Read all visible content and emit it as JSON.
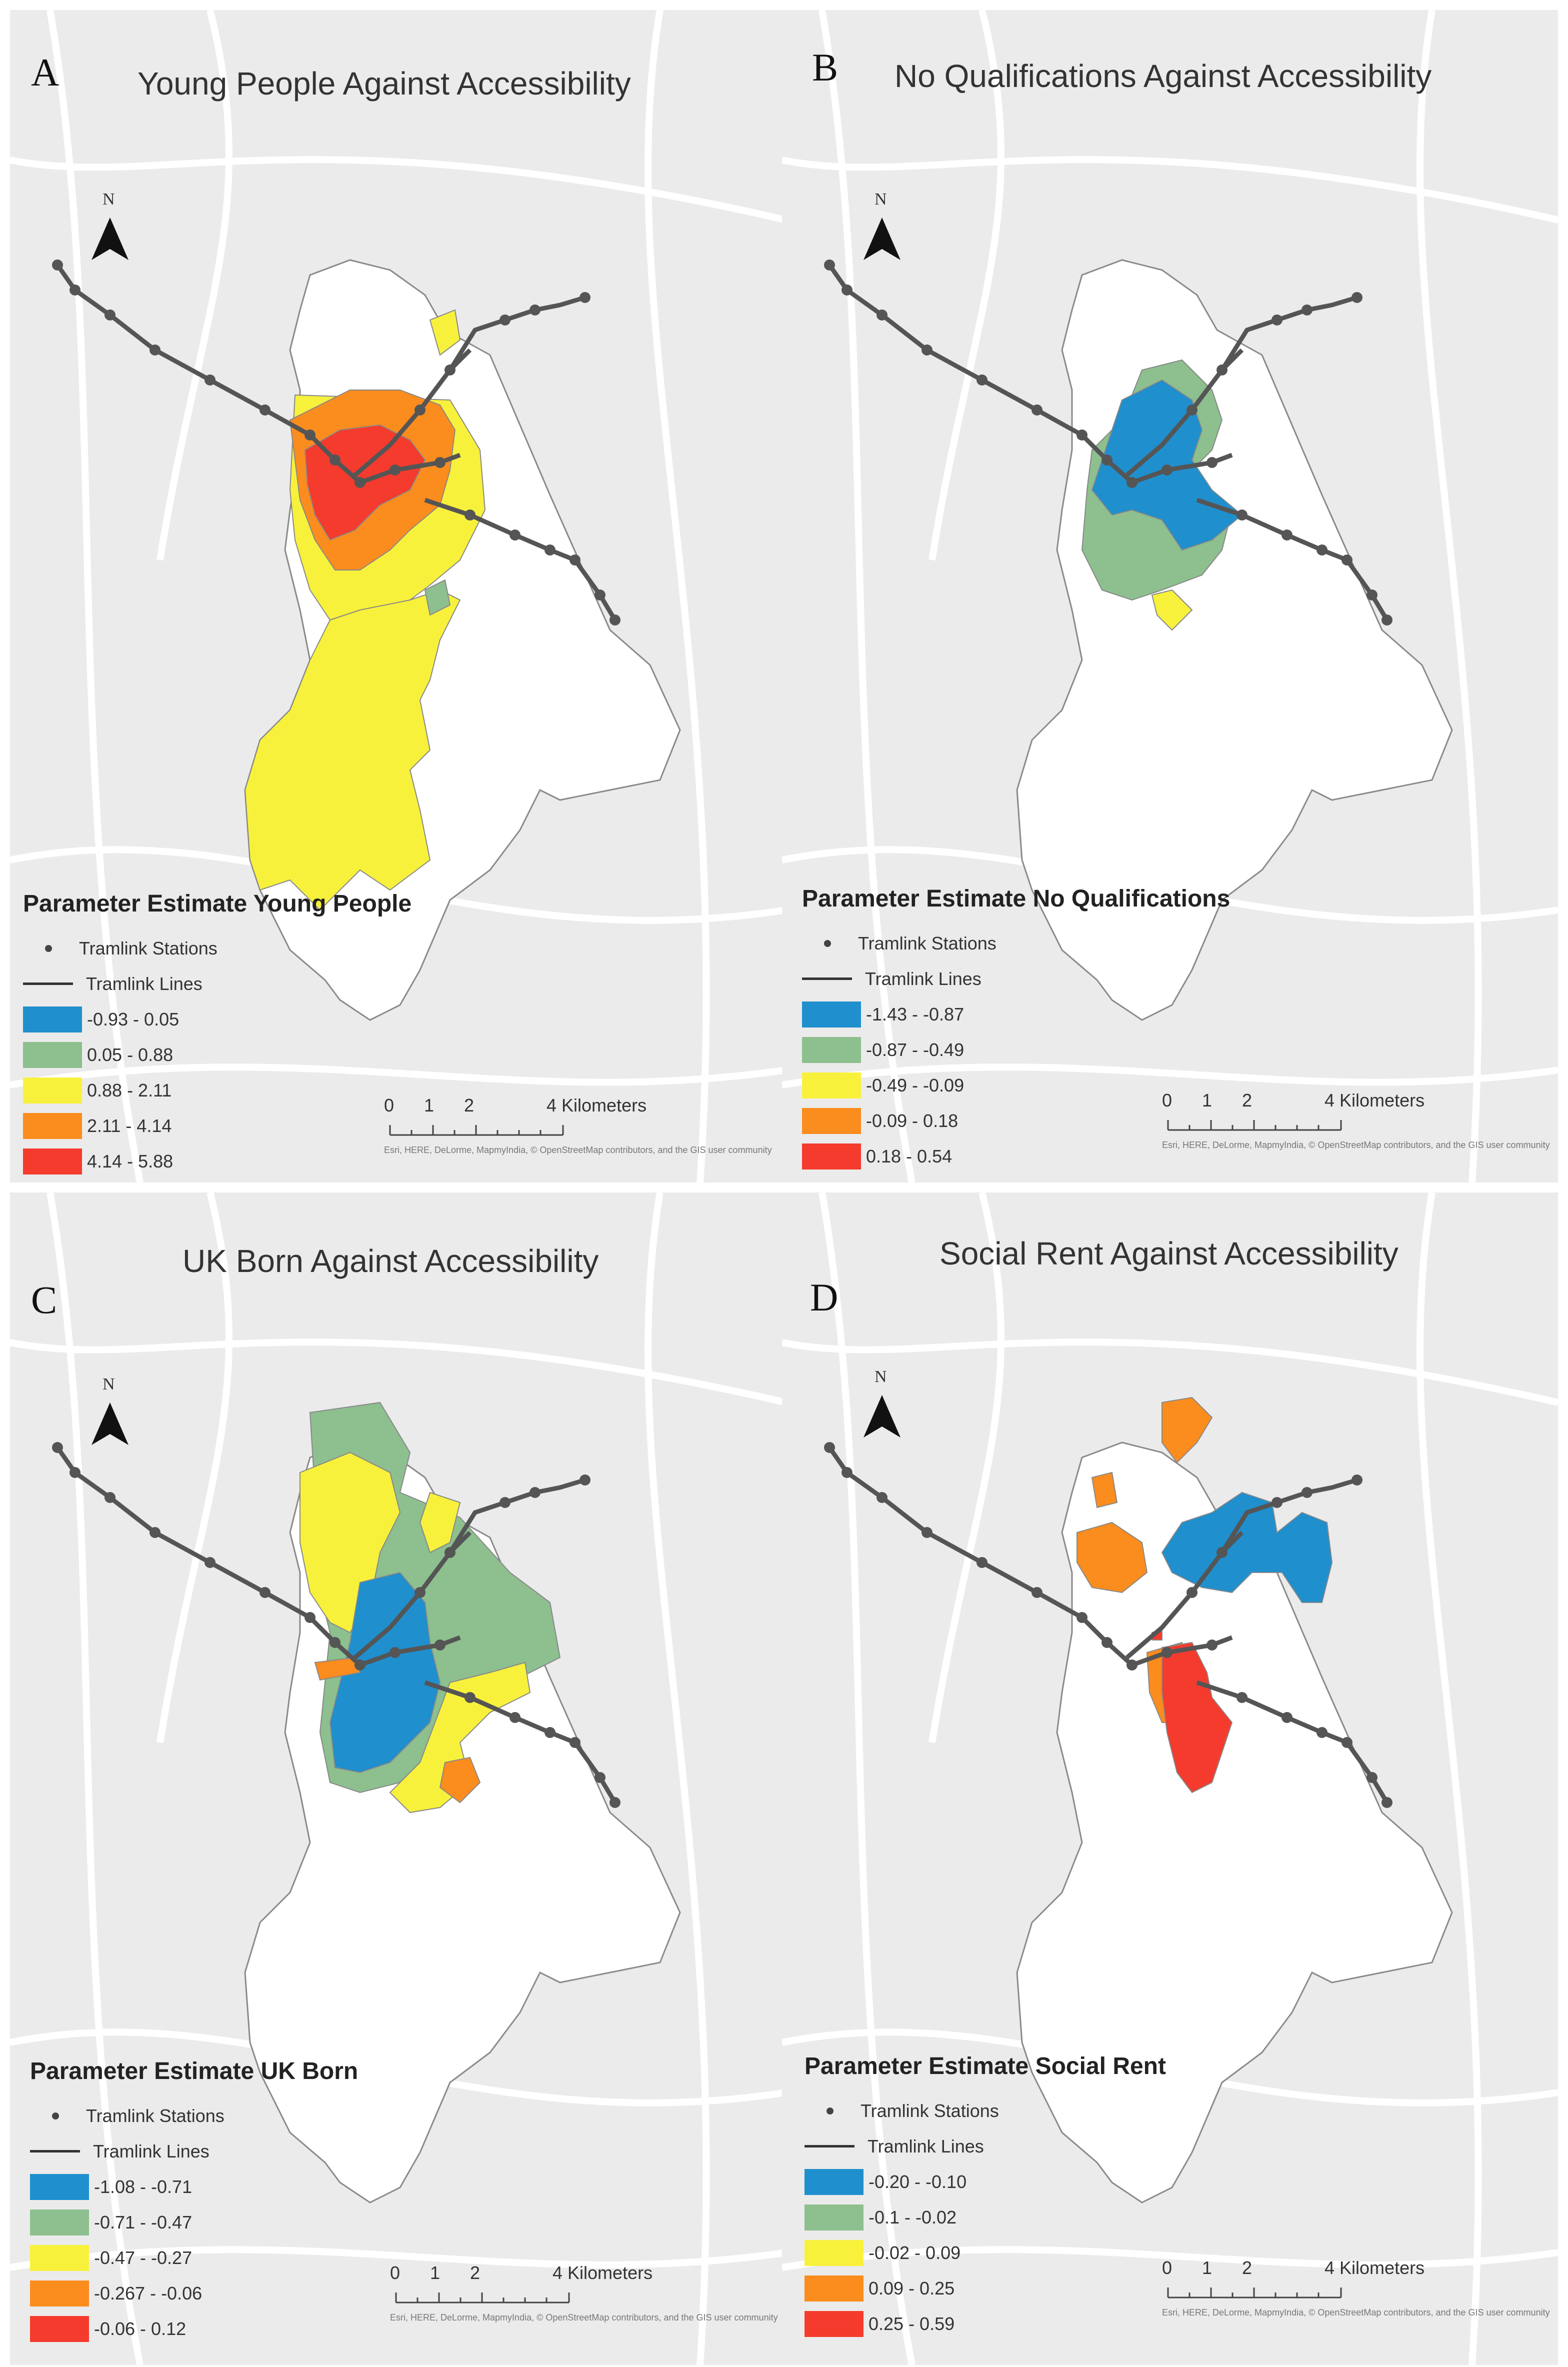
{
  "colors": {
    "background": "#ebebeb",
    "roads": "#ffffff",
    "borough_fill": "#ffffff",
    "borough_outline": "#8a8a8a",
    "tram": "#555555",
    "blue": "#1f8fce",
    "green": "#8dbf8f",
    "yellow": "#f8f13c",
    "orange": "#fb8c1e",
    "red": "#f43b2d"
  },
  "icons": [
    "north-arrow-icon",
    "tram-station-dot-icon",
    "tram-line-icon"
  ],
  "legend_common": {
    "stations": "Tramlink Stations",
    "lines": "Tramlink Lines"
  },
  "scale_bar": {
    "ticks": [
      "0",
      "1",
      "2",
      "4 Kilometers"
    ],
    "attribution": "Esri, HERE, DeLorme, MapmyIndia, © OpenStreetMap contributors, and the GIS user community"
  },
  "north_label": "N",
  "panels": [
    {
      "letter": "A",
      "title": "Young People Against Accessibility",
      "legend_title": "Parameter Estimate Young People",
      "classes": [
        "-0.93 - 0.05",
        "0.05 - 0.88",
        "0.88 - 2.11",
        "2.11 - 4.14",
        "4.14 - 5.88"
      ]
    },
    {
      "letter": "B",
      "title": "No Qualifications Against Accessibility",
      "legend_title": "Parameter Estimate No Qualifications",
      "classes": [
        "-1.43 - -0.87",
        "-0.87 - -0.49",
        "-0.49 - -0.09",
        "-0.09 - 0.18",
        "0.18 - 0.54"
      ]
    },
    {
      "letter": "C",
      "title": "UK Born Against Accessibility",
      "legend_title": "Parameter Estimate UK Born",
      "classes": [
        "-1.08 - -0.71",
        "-0.71 - -0.47",
        "-0.47 - -0.27",
        "-0.267 - -0.06",
        "-0.06 - 0.12"
      ]
    },
    {
      "letter": "D",
      "title": "Social Rent Against Accessibility",
      "legend_title": "Parameter Estimate Social Rent",
      "classes": [
        "-0.20 - -0.10",
        "-0.1 - -0.02",
        "-0.02 - 0.09",
        "0.09 - 0.25",
        "0.25 - 0.59"
      ]
    }
  ]
}
